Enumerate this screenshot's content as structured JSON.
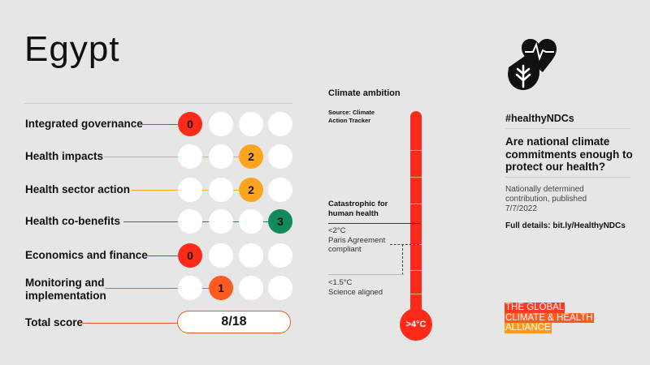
{
  "country": "Egypt",
  "colors": {
    "background": "#e6e6e6",
    "score_0": "#ff2a1a",
    "score_1": "#ff5a1f",
    "score_2": "#ffa41f",
    "score_3": "#138a5a",
    "empty_dot": "#ffffff",
    "thermometer": "#ff2a1a"
  },
  "rows": [
    {
      "label": "Integrated governance",
      "score": 0,
      "score_text": "0",
      "leader_color": "#ff2a1a"
    },
    {
      "label": "Health impacts",
      "score": 2,
      "score_text": "2",
      "leader_color": "#ffa41f"
    },
    {
      "label": "Health sector action",
      "score": 2,
      "score_text": "2",
      "leader_color": "#ffa41f"
    },
    {
      "label": "Health co-benefits",
      "score": 3,
      "score_text": "3",
      "leader_color": "#138a5a"
    },
    {
      "label": "Economics and finance",
      "score": 0,
      "score_text": "0",
      "leader_color": "#ff2a1a"
    },
    {
      "label": "Monitoring and implementation",
      "score": 1,
      "score_text": "1",
      "leader_color": "#ff5a1f"
    }
  ],
  "total": {
    "label": "Total score",
    "value": "8/18"
  },
  "thermometer": {
    "title": "Climate ambition",
    "source": "Source: Climate Action Tracker",
    "catastrophic": "Catastrophic for human health",
    "paris_temp": "<2°C",
    "paris_text": "Paris Agreement compliant",
    "science_temp": "<1.5°C",
    "science_text": "Science aligned",
    "bulb_label": ">4°C"
  },
  "side": {
    "icon": "hearts-leaf-icon",
    "hashtag": "#healthyNDCs",
    "question": "Are national climate commitments enough to protect our health?",
    "ndc_info": "Nationally determined contribution, published 7/7/2022",
    "details": "Full details: bit.ly/HealthyNDCs"
  },
  "logo": {
    "line1": "THE GLOBAL",
    "line2": "CLIMATE & HEALTH",
    "line3": "ALLIANCE"
  }
}
